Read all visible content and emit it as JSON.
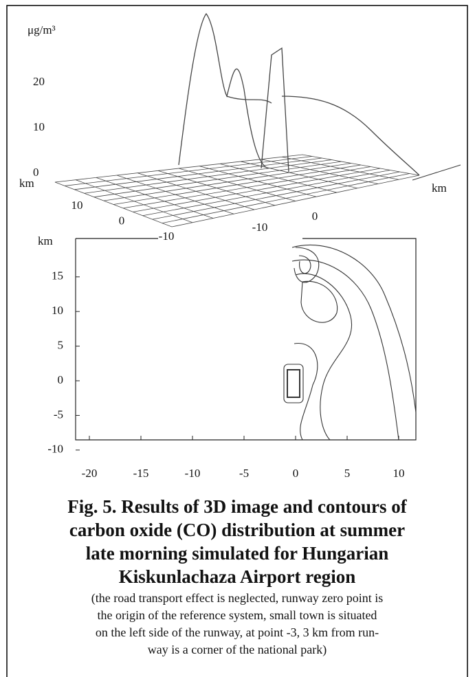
{
  "figure": {
    "surface": {
      "z_unit": "μg/m³",
      "zticks": [
        20,
        10,
        0
      ],
      "left_axis_label": "km",
      "left_ticks": [
        10,
        0,
        -10
      ],
      "right_axis_label": "km",
      "right_ticks": [
        -10,
        0
      ]
    },
    "contour": {
      "y_axis_label": "km",
      "yticks": [
        15,
        10,
        5,
        0,
        -5,
        -10
      ],
      "xticks": [
        -20,
        -15,
        -10,
        -5,
        0,
        5,
        10
      ]
    },
    "caption": {
      "title_lines": [
        "Fig. 5. Results of 3D image and contours of",
        "carbon oxide (CO) distribution at summer",
        "late morning simulated for Hungarian",
        "Kiskunlachaza Airport region"
      ],
      "note_lines": [
        "(the road transport effect is neglected, runway zero point is",
        "the origin of the reference system, small town is situated",
        "on the left side of the runway, at point -3, 3 km from run-",
        "way is a corner of the national park)"
      ]
    }
  }
}
